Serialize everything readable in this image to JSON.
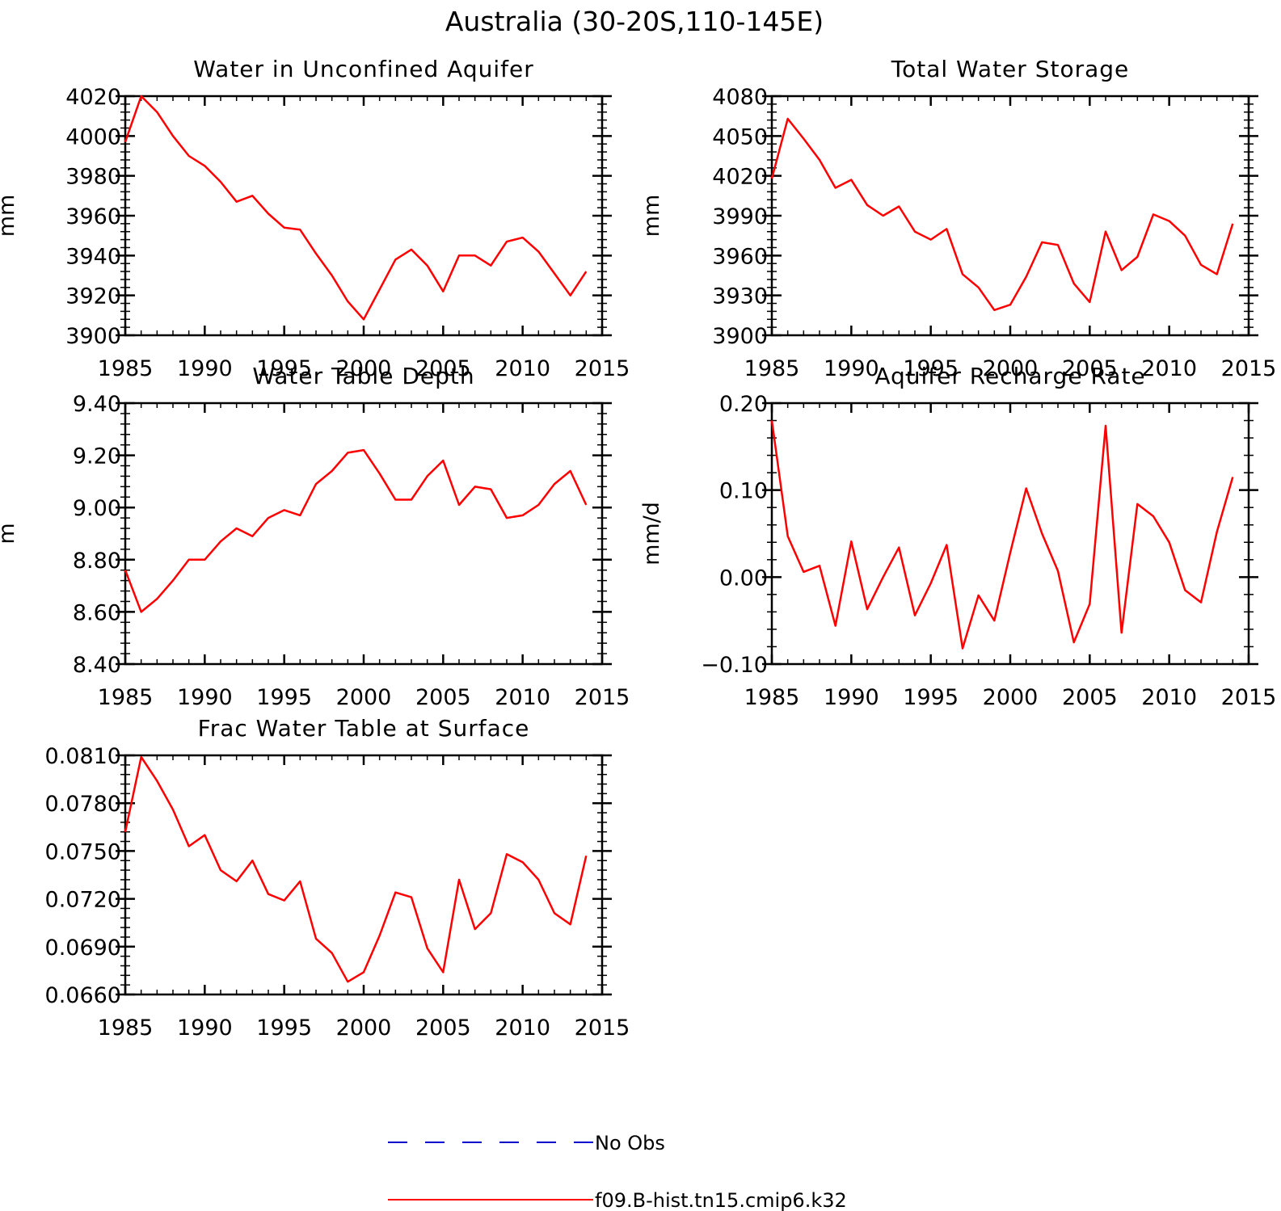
{
  "figure_title": "Australia (30-20S,110-145E)",
  "legend": [
    {
      "label": "No Obs",
      "color": "#0000cc",
      "dashed": true
    },
    {
      "label": "f09.B-hist.tn15.cmip6.k32",
      "color": "#ff0000",
      "dashed": false
    }
  ],
  "chart_data": [
    {
      "type": "line",
      "title": "Water in Unconfined Aquifer",
      "ylabel": "mm",
      "xlim": [
        1985,
        2015
      ],
      "ylim": [
        3900,
        4020
      ],
      "xticks": [
        1985,
        1990,
        1995,
        2000,
        2005,
        2010,
        2015
      ],
      "yticks": [
        3900,
        3920,
        3940,
        3960,
        3980,
        4000,
        4020
      ],
      "ytick_labels": [
        "3900",
        "3920",
        "3940",
        "3960",
        "3980",
        "4000",
        "4020"
      ],
      "grid": false,
      "series": [
        {
          "name": "f09.B-hist.tn15.cmip6.k32",
          "color": "#ff0000",
          "x": [
            1985,
            1986,
            1987,
            1988,
            1989,
            1990,
            1991,
            1992,
            1993,
            1994,
            1995,
            1996,
            1997,
            1998,
            1999,
            2000,
            2001,
            2002,
            2003,
            2004,
            2005,
            2006,
            2007,
            2008,
            2009,
            2010,
            2011,
            2012,
            2013,
            2014
          ],
          "y": [
            3997,
            4020,
            4012,
            4000,
            3990,
            3985,
            3977,
            3967,
            3970,
            3961,
            3954,
            3953,
            3941,
            3930,
            3917,
            3908,
            3923,
            3938,
            3943,
            3935,
            3922,
            3940,
            3940,
            3935,
            3947,
            3949,
            3942,
            3931,
            3920,
            3932
          ]
        }
      ]
    },
    {
      "type": "line",
      "title": "Total Water Storage",
      "ylabel": "mm",
      "xlim": [
        1985,
        2015
      ],
      "ylim": [
        3900,
        4080
      ],
      "xticks": [
        1985,
        1990,
        1995,
        2000,
        2005,
        2010,
        2015
      ],
      "yticks": [
        3900,
        3930,
        3960,
        3990,
        4020,
        4050,
        4080
      ],
      "ytick_labels": [
        "3900",
        "3930",
        "3960",
        "3990",
        "4020",
        "4050",
        "4080"
      ],
      "grid": false,
      "series": [
        {
          "name": "f09.B-hist.tn15.cmip6.k32",
          "color": "#ff0000",
          "x": [
            1985,
            1986,
            1987,
            1988,
            1989,
            1990,
            1991,
            1992,
            1993,
            1994,
            1995,
            1996,
            1997,
            1998,
            1999,
            2000,
            2001,
            2002,
            2003,
            2004,
            2005,
            2006,
            2007,
            2008,
            2009,
            2010,
            2011,
            2012,
            2013,
            2014
          ],
          "y": [
            4018,
            4063,
            4048,
            4032,
            4011,
            4017,
            3998,
            3990,
            3997,
            3978,
            3972,
            3980,
            3946,
            3936,
            3919,
            3923,
            3944,
            3970,
            3968,
            3939,
            3925,
            3978,
            3949,
            3959,
            3991,
            3986,
            3975,
            3953,
            3946,
            3984
          ]
        }
      ]
    },
    {
      "type": "line",
      "title": "Water Table Depth",
      "ylabel": "m",
      "xlim": [
        1985,
        2015
      ],
      "ylim": [
        8.4,
        9.4
      ],
      "xticks": [
        1985,
        1990,
        1995,
        2000,
        2005,
        2010,
        2015
      ],
      "yticks": [
        8.4,
        8.6,
        8.8,
        9.0,
        9.2,
        9.4
      ],
      "ytick_labels": [
        "8.40",
        "8.60",
        "8.80",
        "9.00",
        "9.20",
        "9.40"
      ],
      "grid": false,
      "series": [
        {
          "name": "f09.B-hist.tn15.cmip6.k32",
          "color": "#ff0000",
          "x": [
            1985,
            1986,
            1987,
            1988,
            1989,
            1990,
            1991,
            1992,
            1993,
            1994,
            1995,
            1996,
            1997,
            1998,
            1999,
            2000,
            2001,
            2002,
            2003,
            2004,
            2005,
            2006,
            2007,
            2008,
            2009,
            2010,
            2011,
            2012,
            2013,
            2014
          ],
          "y": [
            8.76,
            8.6,
            8.65,
            8.72,
            8.8,
            8.8,
            8.87,
            8.92,
            8.89,
            8.96,
            8.99,
            8.97,
            9.09,
            9.14,
            9.21,
            9.22,
            9.13,
            9.03,
            9.03,
            9.12,
            9.18,
            9.01,
            9.08,
            9.07,
            8.96,
            8.97,
            9.01,
            9.09,
            9.14,
            9.01
          ]
        }
      ]
    },
    {
      "type": "line",
      "title": "Aquifer Recharge Rate",
      "ylabel": "mm/d",
      "xlim": [
        1985,
        2015
      ],
      "ylim": [
        -0.1,
        0.2
      ],
      "xticks": [
        1985,
        1990,
        1995,
        2000,
        2005,
        2010,
        2015
      ],
      "yticks": [
        -0.1,
        0.0,
        0.1,
        0.2
      ],
      "ytick_labels": [
        "−0.10",
        "0.00",
        "0.10",
        "0.20"
      ],
      "grid": false,
      "series": [
        {
          "name": "f09.B-hist.tn15.cmip6.k32",
          "color": "#ff0000",
          "x": [
            1985,
            1986,
            1987,
            1988,
            1989,
            1990,
            1991,
            1992,
            1993,
            1994,
            1995,
            1996,
            1997,
            1998,
            1999,
            2000,
            2001,
            2002,
            2003,
            2004,
            2005,
            2006,
            2007,
            2008,
            2009,
            2010,
            2011,
            2012,
            2013,
            2014
          ],
          "y": [
            0.18,
            0.047,
            0.006,
            0.013,
            -0.056,
            0.041,
            -0.037,
            0.0,
            0.034,
            -0.044,
            -0.007,
            0.037,
            -0.082,
            -0.021,
            -0.05,
            0.028,
            0.102,
            0.05,
            0.007,
            -0.075,
            -0.031,
            0.174,
            -0.064,
            0.084,
            0.07,
            0.04,
            -0.015,
            -0.029,
            0.052,
            0.115
          ]
        }
      ]
    },
    {
      "type": "line",
      "title": "Frac Water Table at Surface",
      "ylabel": "",
      "xlim": [
        1985,
        2015
      ],
      "ylim": [
        0.066,
        0.081
      ],
      "xticks": [
        1985,
        1990,
        1995,
        2000,
        2005,
        2010,
        2015
      ],
      "yticks": [
        0.066,
        0.069,
        0.072,
        0.075,
        0.078,
        0.081
      ],
      "ytick_labels": [
        "0.0660",
        "0.0690",
        "0.0720",
        "0.0750",
        "0.0780",
        "0.0810"
      ],
      "grid": false,
      "series": [
        {
          "name": "f09.B-hist.tn15.cmip6.k32",
          "color": "#ff0000",
          "x": [
            1985,
            1986,
            1987,
            1988,
            1989,
            1990,
            1991,
            1992,
            1993,
            1994,
            1995,
            1996,
            1997,
            1998,
            1999,
            2000,
            2001,
            2002,
            2003,
            2004,
            2005,
            2006,
            2007,
            2008,
            2009,
            2010,
            2011,
            2012,
            2013,
            2014
          ],
          "y": [
            0.0762,
            0.0809,
            0.0794,
            0.0776,
            0.0753,
            0.076,
            0.0738,
            0.0731,
            0.0744,
            0.0723,
            0.0719,
            0.0731,
            0.0695,
            0.0686,
            0.0668,
            0.0674,
            0.0697,
            0.0724,
            0.0721,
            0.0689,
            0.0674,
            0.0732,
            0.0701,
            0.0711,
            0.0748,
            0.0743,
            0.0732,
            0.0711,
            0.0704,
            0.0747
          ]
        }
      ]
    }
  ]
}
